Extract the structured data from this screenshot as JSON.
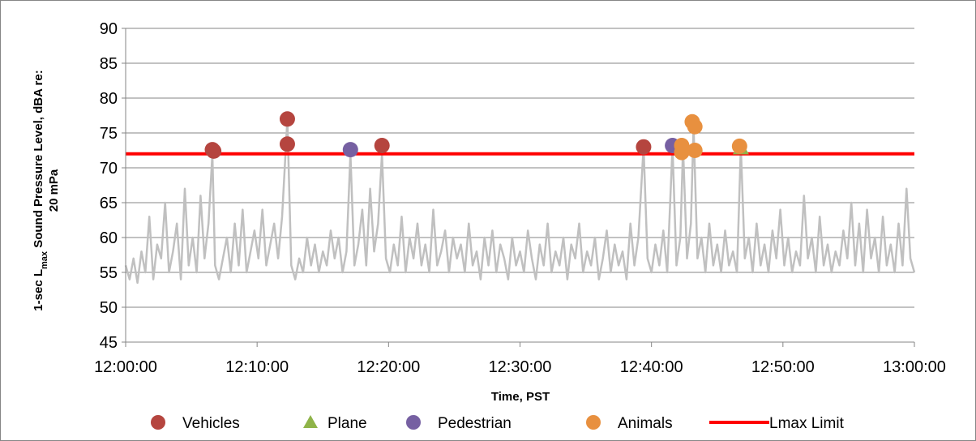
{
  "chart_data": {
    "type": "scatter",
    "title": "",
    "xlabel": "Time, PST",
    "ylabel_line1": "1-sec L",
    "ylabel_sub": "max",
    "ylabel_line1_rest": " Sound Pressure Level, dBA re:",
    "ylabel_line2": "20 mPa",
    "xlim_minutes": [
      0,
      60
    ],
    "ylim": [
      45,
      90
    ],
    "x_ticks": [
      "12:00:00",
      "12:10:00",
      "12:20:00",
      "12:30:00",
      "12:40:00",
      "12:50:00",
      "13:00:00"
    ],
    "x_tick_minutes": [
      0,
      10,
      20,
      30,
      40,
      50,
      60
    ],
    "y_ticks": [
      45,
      50,
      55,
      60,
      65,
      70,
      75,
      80,
      85,
      90
    ],
    "grid": "horizontal",
    "legend_position": "bottom",
    "colors": {
      "vehicles": "#b5453f",
      "plane": "#8fb449",
      "pedestrian": "#7660a2",
      "animals": "#e8903f",
      "lmax_limit": "#ff0000",
      "trace": "#c0c0c0",
      "grid": "#868686"
    },
    "lmax_limit": 72,
    "background_trace_note": "1-sec Lmax trace mostly 53-62 dBA with spikes to ~68",
    "trace_points": [
      [
        0.0,
        56
      ],
      [
        0.3,
        54
      ],
      [
        0.6,
        57
      ],
      [
        0.9,
        53.5
      ],
      [
        1.2,
        58
      ],
      [
        1.5,
        55
      ],
      [
        1.8,
        63
      ],
      [
        2.1,
        54
      ],
      [
        2.4,
        59
      ],
      [
        2.7,
        57
      ],
      [
        3.0,
        65
      ],
      [
        3.3,
        55
      ],
      [
        3.6,
        58
      ],
      [
        3.9,
        62
      ],
      [
        4.2,
        54
      ],
      [
        4.5,
        67
      ],
      [
        4.8,
        56
      ],
      [
        5.1,
        60
      ],
      [
        5.4,
        55
      ],
      [
        5.7,
        66
      ],
      [
        6.0,
        57
      ],
      [
        6.3,
        62
      ],
      [
        6.6,
        72
      ],
      [
        6.8,
        56
      ],
      [
        7.1,
        54
      ],
      [
        7.4,
        57
      ],
      [
        7.7,
        60
      ],
      [
        8.0,
        55
      ],
      [
        8.3,
        62
      ],
      [
        8.6,
        56
      ],
      [
        8.9,
        64
      ],
      [
        9.2,
        55
      ],
      [
        9.5,
        58
      ],
      [
        9.8,
        61
      ],
      [
        10.1,
        57
      ],
      [
        10.4,
        64
      ],
      [
        10.7,
        56
      ],
      [
        11.0,
        59
      ],
      [
        11.3,
        62
      ],
      [
        11.6,
        57
      ],
      [
        11.9,
        63
      ],
      [
        12.3,
        77
      ],
      [
        12.6,
        56
      ],
      [
        12.9,
        54
      ],
      [
        13.2,
        57
      ],
      [
        13.5,
        55
      ],
      [
        13.8,
        60
      ],
      [
        14.1,
        56
      ],
      [
        14.4,
        59
      ],
      [
        14.7,
        55
      ],
      [
        15.0,
        58
      ],
      [
        15.3,
        56
      ],
      [
        15.6,
        61
      ],
      [
        15.9,
        57
      ],
      [
        16.2,
        60
      ],
      [
        16.5,
        55
      ],
      [
        16.8,
        58
      ],
      [
        17.1,
        72
      ],
      [
        17.4,
        56
      ],
      [
        17.7,
        59
      ],
      [
        18.0,
        64
      ],
      [
        18.3,
        56
      ],
      [
        18.6,
        67
      ],
      [
        18.9,
        58
      ],
      [
        19.2,
        62
      ],
      [
        19.5,
        72
      ],
      [
        19.8,
        57
      ],
      [
        20.1,
        55
      ],
      [
        20.4,
        59
      ],
      [
        20.7,
        56
      ],
      [
        21.0,
        63
      ],
      [
        21.3,
        55
      ],
      [
        21.6,
        60
      ],
      [
        21.9,
        57
      ],
      [
        22.2,
        62
      ],
      [
        22.5,
        56
      ],
      [
        22.8,
        59
      ],
      [
        23.1,
        55
      ],
      [
        23.4,
        64
      ],
      [
        23.7,
        56
      ],
      [
        24.0,
        58
      ],
      [
        24.3,
        61
      ],
      [
        24.6,
        55
      ],
      [
        24.9,
        60
      ],
      [
        25.2,
        57
      ],
      [
        25.5,
        59
      ],
      [
        25.8,
        55
      ],
      [
        26.1,
        62
      ],
      [
        26.4,
        56
      ],
      [
        26.7,
        58
      ],
      [
        27.0,
        54
      ],
      [
        27.3,
        60
      ],
      [
        27.6,
        56
      ],
      [
        27.9,
        61
      ],
      [
        28.2,
        55
      ],
      [
        28.5,
        59
      ],
      [
        28.8,
        57
      ],
      [
        29.1,
        54
      ],
      [
        29.4,
        60
      ],
      [
        29.7,
        56
      ],
      [
        30.0,
        58
      ],
      [
        30.3,
        55
      ],
      [
        30.6,
        61
      ],
      [
        30.9,
        57
      ],
      [
        31.2,
        54
      ],
      [
        31.5,
        59
      ],
      [
        31.8,
        56
      ],
      [
        32.1,
        62
      ],
      [
        32.4,
        55
      ],
      [
        32.7,
        58
      ],
      [
        33.0,
        56
      ],
      [
        33.3,
        60
      ],
      [
        33.6,
        54
      ],
      [
        33.9,
        59
      ],
      [
        34.2,
        57
      ],
      [
        34.5,
        62
      ],
      [
        34.8,
        55
      ],
      [
        35.1,
        58
      ],
      [
        35.4,
        56
      ],
      [
        35.7,
        60
      ],
      [
        36.0,
        54
      ],
      [
        36.3,
        57
      ],
      [
        36.6,
        61
      ],
      [
        36.9,
        55
      ],
      [
        37.2,
        59
      ],
      [
        37.5,
        56
      ],
      [
        37.8,
        58
      ],
      [
        38.1,
        54
      ],
      [
        38.4,
        62
      ],
      [
        38.7,
        56
      ],
      [
        39.0,
        60
      ],
      [
        39.4,
        73
      ],
      [
        39.7,
        57
      ],
      [
        40.0,
        55
      ],
      [
        40.3,
        59
      ],
      [
        40.6,
        56
      ],
      [
        40.9,
        61
      ],
      [
        41.2,
        55
      ],
      [
        41.6,
        73
      ],
      [
        41.9,
        56
      ],
      [
        42.2,
        60
      ],
      [
        42.4,
        73
      ],
      [
        42.7,
        57
      ],
      [
        43.0,
        62
      ],
      [
        43.2,
        76
      ],
      [
        43.5,
        57
      ],
      [
        43.8,
        60
      ],
      [
        44.1,
        55
      ],
      [
        44.4,
        62
      ],
      [
        44.7,
        56
      ],
      [
        45.0,
        59
      ],
      [
        45.3,
        55
      ],
      [
        45.6,
        61
      ],
      [
        45.9,
        56
      ],
      [
        46.2,
        58
      ],
      [
        46.5,
        55
      ],
      [
        46.8,
        73
      ],
      [
        47.1,
        57
      ],
      [
        47.4,
        60
      ],
      [
        47.7,
        55
      ],
      [
        48.0,
        62
      ],
      [
        48.3,
        56
      ],
      [
        48.6,
        59
      ],
      [
        48.9,
        55
      ],
      [
        49.2,
        61
      ],
      [
        49.5,
        57
      ],
      [
        49.8,
        64
      ],
      [
        50.1,
        56
      ],
      [
        50.4,
        60
      ],
      [
        50.7,
        55
      ],
      [
        51.0,
        58
      ],
      [
        51.3,
        56
      ],
      [
        51.6,
        66
      ],
      [
        51.9,
        57
      ],
      [
        52.2,
        60
      ],
      [
        52.5,
        55
      ],
      [
        52.8,
        63
      ],
      [
        53.1,
        56
      ],
      [
        53.4,
        59
      ],
      [
        53.7,
        55
      ],
      [
        54.0,
        58
      ],
      [
        54.3,
        56
      ],
      [
        54.6,
        61
      ],
      [
        54.9,
        57
      ],
      [
        55.2,
        65
      ],
      [
        55.5,
        56
      ],
      [
        55.8,
        62
      ],
      [
        56.1,
        55
      ],
      [
        56.4,
        64
      ],
      [
        56.7,
        57
      ],
      [
        57.0,
        60
      ],
      [
        57.3,
        55
      ],
      [
        57.6,
        63
      ],
      [
        57.9,
        56
      ],
      [
        58.2,
        59
      ],
      [
        58.5,
        55
      ],
      [
        58.8,
        62
      ],
      [
        59.1,
        56
      ],
      [
        59.4,
        67
      ],
      [
        59.7,
        57
      ],
      [
        60.0,
        55
      ]
    ],
    "series": [
      {
        "name": "Vehicles",
        "marker": "circle",
        "points": [
          [
            6.6,
            72.6
          ],
          [
            6.7,
            72.4
          ],
          [
            12.3,
            77.0
          ],
          [
            12.3,
            73.4
          ],
          [
            19.5,
            73.2
          ],
          [
            39.4,
            73.0
          ]
        ]
      },
      {
        "name": "Plane",
        "marker": "triangle",
        "points": [
          [
            46.8,
            72.8
          ]
        ]
      },
      {
        "name": "Pedestrian",
        "marker": "circle",
        "points": [
          [
            17.1,
            72.6
          ],
          [
            41.6,
            73.2
          ]
        ]
      },
      {
        "name": "Animals",
        "marker": "circle",
        "points": [
          [
            42.3,
            73.2
          ],
          [
            42.3,
            72.2
          ],
          [
            43.1,
            76.6
          ],
          [
            43.3,
            75.9
          ],
          [
            43.3,
            72.5
          ],
          [
            46.7,
            73.1
          ]
        ]
      }
    ],
    "legend": [
      "Vehicles",
      "Plane",
      "Pedestrian",
      "Animals",
      "Lmax Limit"
    ]
  }
}
